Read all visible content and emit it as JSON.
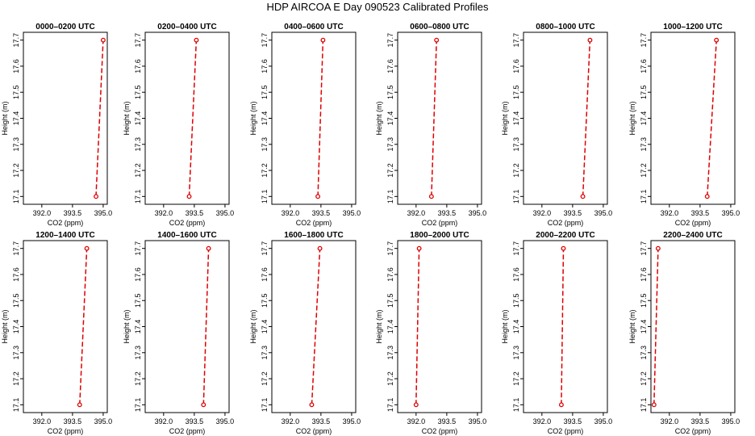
{
  "figure": {
    "title": "HDP AIRCOA E  Day 090523  Calibrated Profiles",
    "line_color": "#dd0000"
  },
  "chart_data": [
    {
      "type": "line",
      "title": "0000–0200 UTC",
      "xlabel": "CO2 (ppm)",
      "ylabel": "Height (m)",
      "xlim": [
        391.1,
        395.2
      ],
      "ylim": [
        17.07,
        17.73
      ],
      "xticks": [
        392.0,
        393.5,
        395.0
      ],
      "xtick_labels": [
        "392.0",
        "393.5",
        "395.0"
      ],
      "yticks": [
        17.1,
        17.2,
        17.3,
        17.4,
        17.5,
        17.6,
        17.7
      ],
      "ytick_labels": [
        "17.1",
        "17.2",
        "17.3",
        "17.4",
        "17.5",
        "17.6",
        "17.7"
      ],
      "series": [
        {
          "x": [
            394.65,
            395.0
          ],
          "y": [
            17.1,
            17.7
          ]
        }
      ]
    },
    {
      "type": "line",
      "title": "0200–0400 UTC",
      "xlabel": "CO2 (ppm)",
      "ylabel": "Height (m)",
      "xlim": [
        391.1,
        395.2
      ],
      "ylim": [
        17.07,
        17.73
      ],
      "xticks": [
        392.0,
        393.5,
        395.0
      ],
      "xtick_labels": [
        "392.0",
        "393.5",
        "395.0"
      ],
      "yticks": [
        17.1,
        17.2,
        17.3,
        17.4,
        17.5,
        17.6,
        17.7
      ],
      "ytick_labels": [
        "17.1",
        "17.2",
        "17.3",
        "17.4",
        "17.5",
        "17.6",
        "17.7"
      ],
      "series": [
        {
          "x": [
            393.25,
            393.6
          ],
          "y": [
            17.1,
            17.7
          ]
        }
      ]
    },
    {
      "type": "line",
      "title": "0400–0600 UTC",
      "xlabel": "CO2 (ppm)",
      "ylabel": "Height (m)",
      "xlim": [
        391.1,
        395.2
      ],
      "ylim": [
        17.07,
        17.73
      ],
      "xticks": [
        392.0,
        393.5,
        395.0
      ],
      "xtick_labels": [
        "392.0",
        "393.5",
        "395.0"
      ],
      "yticks": [
        17.1,
        17.2,
        17.3,
        17.4,
        17.5,
        17.6,
        17.7
      ],
      "ytick_labels": [
        "17.1",
        "17.2",
        "17.3",
        "17.4",
        "17.5",
        "17.6",
        "17.7"
      ],
      "series": [
        {
          "x": [
            393.35,
            393.6
          ],
          "y": [
            17.1,
            17.7
          ]
        }
      ]
    },
    {
      "type": "line",
      "title": "0600–0800 UTC",
      "xlabel": "CO2 (ppm)",
      "ylabel": "Height (m)",
      "xlim": [
        391.1,
        395.2
      ],
      "ylim": [
        17.07,
        17.73
      ],
      "xticks": [
        392.0,
        393.5,
        395.0
      ],
      "xtick_labels": [
        "392.0",
        "393.5",
        "395.0"
      ],
      "yticks": [
        17.1,
        17.2,
        17.3,
        17.4,
        17.5,
        17.6,
        17.7
      ],
      "ytick_labels": [
        "17.1",
        "17.2",
        "17.3",
        "17.4",
        "17.5",
        "17.6",
        "17.7"
      ],
      "series": [
        {
          "x": [
            392.75,
            393.0
          ],
          "y": [
            17.1,
            17.7
          ]
        }
      ]
    },
    {
      "type": "line",
      "title": "0800–1000 UTC",
      "xlabel": "CO2 (ppm)",
      "ylabel": "Height (m)",
      "xlim": [
        391.1,
        395.2
      ],
      "ylim": [
        17.07,
        17.73
      ],
      "xticks": [
        392.0,
        393.5,
        395.0
      ],
      "xtick_labels": [
        "392.0",
        "393.5",
        "395.0"
      ],
      "yticks": [
        17.1,
        17.2,
        17.3,
        17.4,
        17.5,
        17.6,
        17.7
      ],
      "ytick_labels": [
        "17.1",
        "17.2",
        "17.3",
        "17.4",
        "17.5",
        "17.6",
        "17.7"
      ],
      "series": [
        {
          "x": [
            394.0,
            394.35
          ],
          "y": [
            17.1,
            17.7
          ]
        }
      ]
    },
    {
      "type": "line",
      "title": "1000–1200 UTC",
      "xlabel": "CO2 (ppm)",
      "ylabel": "Height (m)",
      "xlim": [
        391.1,
        395.2
      ],
      "ylim": [
        17.07,
        17.73
      ],
      "xticks": [
        392.0,
        393.5,
        395.0
      ],
      "xtick_labels": [
        "392.0",
        "393.5",
        "395.0"
      ],
      "yticks": [
        17.1,
        17.2,
        17.3,
        17.4,
        17.5,
        17.6,
        17.7
      ],
      "ytick_labels": [
        "17.1",
        "17.2",
        "17.3",
        "17.4",
        "17.5",
        "17.6",
        "17.7"
      ],
      "series": [
        {
          "x": [
            393.85,
            394.3
          ],
          "y": [
            17.1,
            17.7
          ]
        }
      ]
    },
    {
      "type": "line",
      "title": "1200–1400 UTC",
      "xlabel": "CO2 (ppm)",
      "ylabel": "Height (m)",
      "xlim": [
        391.1,
        395.2
      ],
      "ylim": [
        17.07,
        17.73
      ],
      "xticks": [
        392.0,
        393.5,
        395.0
      ],
      "xtick_labels": [
        "392.0",
        "393.5",
        "395.0"
      ],
      "yticks": [
        17.1,
        17.2,
        17.3,
        17.4,
        17.5,
        17.6,
        17.7
      ],
      "ytick_labels": [
        "17.1",
        "17.2",
        "17.3",
        "17.4",
        "17.5",
        "17.6",
        "17.7"
      ],
      "series": [
        {
          "x": [
            393.85,
            394.2
          ],
          "y": [
            17.1,
            17.7
          ]
        }
      ]
    },
    {
      "type": "line",
      "title": "1400–1600 UTC",
      "xlabel": "CO2 (ppm)",
      "ylabel": "Height (m)",
      "xlim": [
        391.1,
        395.2
      ],
      "ylim": [
        17.07,
        17.73
      ],
      "xticks": [
        392.0,
        393.5,
        395.0
      ],
      "xtick_labels": [
        "392.0",
        "393.5",
        "395.0"
      ],
      "yticks": [
        17.1,
        17.2,
        17.3,
        17.4,
        17.5,
        17.6,
        17.7
      ],
      "ytick_labels": [
        "17.1",
        "17.2",
        "17.3",
        "17.4",
        "17.5",
        "17.6",
        "17.7"
      ],
      "series": [
        {
          "x": [
            393.95,
            394.2
          ],
          "y": [
            17.1,
            17.7
          ]
        }
      ]
    },
    {
      "type": "line",
      "title": "1600–1800 UTC",
      "xlabel": "CO2 (ppm)",
      "ylabel": "Height (m)",
      "xlim": [
        391.1,
        395.2
      ],
      "ylim": [
        17.07,
        17.73
      ],
      "xticks": [
        392.0,
        393.5,
        395.0
      ],
      "xtick_labels": [
        "392.0",
        "393.5",
        "395.0"
      ],
      "yticks": [
        17.1,
        17.2,
        17.3,
        17.4,
        17.5,
        17.6,
        17.7
      ],
      "ytick_labels": [
        "17.1",
        "17.2",
        "17.3",
        "17.4",
        "17.5",
        "17.6",
        "17.7"
      ],
      "series": [
        {
          "x": [
            393.05,
            393.45
          ],
          "y": [
            17.1,
            17.7
          ]
        }
      ]
    },
    {
      "type": "line",
      "title": "1800–2000 UTC",
      "xlabel": "CO2 (ppm)",
      "ylabel": "Height (m)",
      "xlim": [
        391.1,
        395.2
      ],
      "ylim": [
        17.07,
        17.73
      ],
      "xticks": [
        392.0,
        393.5,
        395.0
      ],
      "xtick_labels": [
        "392.0",
        "393.5",
        "395.0"
      ],
      "yticks": [
        17.1,
        17.2,
        17.3,
        17.4,
        17.5,
        17.6,
        17.7
      ],
      "ytick_labels": [
        "17.1",
        "17.2",
        "17.3",
        "17.4",
        "17.5",
        "17.6",
        "17.7"
      ],
      "series": [
        {
          "x": [
            392.0,
            392.15
          ],
          "y": [
            17.1,
            17.7
          ]
        }
      ]
    },
    {
      "type": "line",
      "title": "2000–2200 UTC",
      "xlabel": "CO2 (ppm)",
      "ylabel": "Height (m)",
      "xlim": [
        391.1,
        395.2
      ],
      "ylim": [
        17.07,
        17.73
      ],
      "xticks": [
        392.0,
        393.5,
        395.0
      ],
      "xtick_labels": [
        "392.0",
        "393.5",
        "395.0"
      ],
      "yticks": [
        17.1,
        17.2,
        17.3,
        17.4,
        17.5,
        17.6,
        17.7
      ],
      "ytick_labels": [
        "17.1",
        "17.2",
        "17.3",
        "17.4",
        "17.5",
        "17.6",
        "17.7"
      ],
      "series": [
        {
          "x": [
            392.95,
            393.05
          ],
          "y": [
            17.1,
            17.7
          ]
        }
      ]
    },
    {
      "type": "line",
      "title": "2200–2400 UTC",
      "xlabel": "CO2 (ppm)",
      "ylabel": "Height (m)",
      "xlim": [
        391.1,
        395.2
      ],
      "ylim": [
        17.07,
        17.73
      ],
      "xticks": [
        392.0,
        393.5,
        395.0
      ],
      "xtick_labels": [
        "392.0",
        "393.5",
        "395.0"
      ],
      "yticks": [
        17.1,
        17.2,
        17.3,
        17.4,
        17.5,
        17.6,
        17.7
      ],
      "ytick_labels": [
        "17.1",
        "17.2",
        "17.3",
        "17.4",
        "17.5",
        "17.6",
        "17.7"
      ],
      "series": [
        {
          "x": [
            391.25,
            391.45
          ],
          "y": [
            17.1,
            17.7
          ]
        }
      ]
    }
  ]
}
